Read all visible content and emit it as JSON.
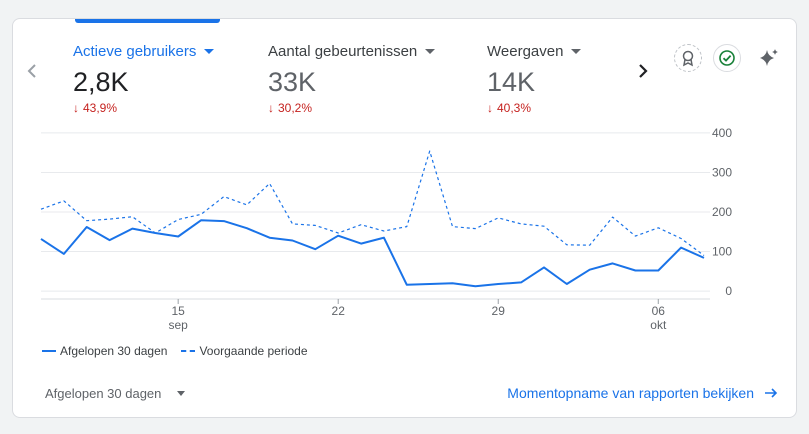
{
  "metrics": [
    {
      "label": "Actieve gebruikers",
      "value": "2,8K",
      "change": "43,9%"
    },
    {
      "label": "Aantal gebeurtenissen",
      "value": "33K",
      "change": "30,2%"
    },
    {
      "label": "Weergaven",
      "value": "14K",
      "change": "40,3%"
    }
  ],
  "icons": {
    "prev": "chevron-left-icon",
    "next": "chevron-right-icon",
    "insights": "badge-ribbon-icon",
    "check": "check-circle-icon",
    "sparkle": "sparkle-icon",
    "change_arrow": "arrow-down-icon"
  },
  "colors": {
    "accent": "#1a73e8",
    "negative": "#c5221f",
    "check_green": "#188038"
  },
  "chart_data": {
    "type": "line",
    "x": [
      "2024-09-09",
      "2024-09-10",
      "2024-09-11",
      "2024-09-12",
      "2024-09-13",
      "2024-09-14",
      "2024-09-15",
      "2024-09-16",
      "2024-09-17",
      "2024-09-18",
      "2024-09-19",
      "2024-09-20",
      "2024-09-21",
      "2024-09-22",
      "2024-09-23",
      "2024-09-24",
      "2024-09-25",
      "2024-09-26",
      "2024-09-27",
      "2024-09-28",
      "2024-09-29",
      "2024-09-30",
      "2024-10-01",
      "2024-10-02",
      "2024-10-03",
      "2024-10-04",
      "2024-10-05",
      "2024-10-06",
      "2024-10-07",
      "2024-10-08"
    ],
    "x_ticks": [
      {
        "date": "2024-09-15",
        "label": "15",
        "sublabel": "sep"
      },
      {
        "date": "2024-09-22",
        "label": "22",
        "sublabel": ""
      },
      {
        "date": "2024-09-29",
        "label": "29",
        "sublabel": ""
      },
      {
        "date": "2024-10-06",
        "label": "06",
        "sublabel": "okt"
      }
    ],
    "series": [
      {
        "name": "Afgelopen 30 dagen",
        "style": "solid",
        "values": [
          132,
          94,
          162,
          129,
          158,
          147,
          138,
          179,
          177,
          159,
          135,
          128,
          106,
          140,
          120,
          135,
          16,
          18,
          20,
          12,
          18,
          22,
          60,
          18,
          54,
          70,
          52,
          52,
          110,
          84
        ]
      },
      {
        "name": "Voorgaande periode",
        "style": "dashed",
        "values": [
          207,
          228,
          178,
          182,
          188,
          147,
          181,
          194,
          239,
          218,
          272,
          170,
          166,
          147,
          168,
          152,
          163,
          354,
          163,
          158,
          185,
          170,
          164,
          117,
          116,
          187,
          139,
          160,
          133,
          90
        ]
      }
    ],
    "y_ticks": [
      0,
      100,
      200,
      300,
      400
    ],
    "ylim": [
      -20,
      420
    ],
    "grid": true,
    "legend": "bottom-left"
  },
  "footer": {
    "period_label": "Afgelopen 30 dagen",
    "link_label": "Momentopname van rapporten bekijken"
  }
}
